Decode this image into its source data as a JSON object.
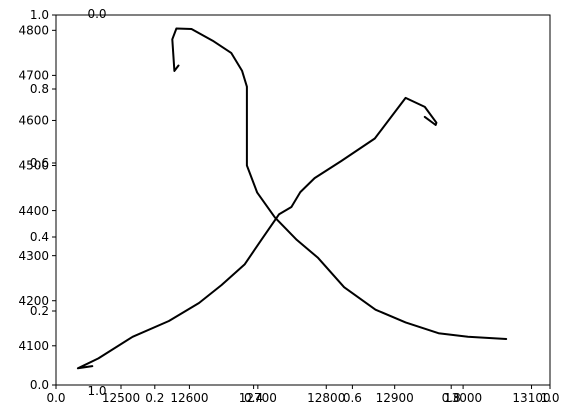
{
  "chart_data": {
    "type": "line",
    "title": "",
    "xlabel": "",
    "ylabel": "",
    "grid": false,
    "line_color": "#000000",
    "background": "#ffffff",
    "primary_axes": {
      "x_ticks": [
        {
          "value": 12500,
          "label": "12500"
        },
        {
          "value": 12600,
          "label": "12600"
        },
        {
          "value": 12700,
          "label": "12700"
        },
        {
          "value": 12800,
          "label": "12800"
        },
        {
          "value": 12900,
          "label": "12900"
        },
        {
          "value": 13000,
          "label": "13000"
        },
        {
          "value": 13100,
          "label": "13100"
        }
      ],
      "y_ticks": [
        {
          "value": 4100,
          "label": "4100"
        },
        {
          "value": 4200,
          "label": "4200"
        },
        {
          "value": 4300,
          "label": "4300"
        },
        {
          "value": 4400,
          "label": "4400"
        },
        {
          "value": 4500,
          "label": "4500"
        },
        {
          "value": 4600,
          "label": "4600"
        },
        {
          "value": 4700,
          "label": "4700"
        },
        {
          "value": 4800,
          "label": "4800"
        }
      ],
      "xlim": [
        12405,
        13127
      ],
      "ylim": [
        4013,
        4834
      ]
    },
    "overlay_axes": {
      "ticks": [
        {
          "value": 0.0,
          "label": "0.0"
        },
        {
          "value": 0.2,
          "label": "0.2"
        },
        {
          "value": 0.4,
          "label": "0.4"
        },
        {
          "value": 0.6,
          "label": "0.6"
        },
        {
          "value": 0.8,
          "label": "0.8"
        },
        {
          "value": 1.0,
          "label": "1.0"
        }
      ],
      "xlim": [
        0,
        1
      ],
      "ylim": [
        0,
        1
      ]
    },
    "inverted_axes": {
      "x_ticks": [
        {
          "value": 0.0,
          "label": "0.0"
        },
        {
          "value": 1.0,
          "label": "1.0"
        }
      ],
      "y_ticks": [
        {
          "value": 0.0,
          "label": "0.0"
        },
        {
          "value": 1.0,
          "label": "1.0"
        }
      ]
    },
    "series": [
      {
        "x": [
          12458,
          12437,
          12467,
          12517,
          12570,
          12614,
          12647,
          12681,
          12705,
          12731,
          12749,
          12762,
          12783,
          12822,
          12871,
          12916,
          12944,
          12961,
          12960,
          12944
        ],
        "y": [
          4055,
          4050,
          4072,
          4120,
          4155,
          4195,
          4235,
          4281,
          4335,
          4392,
          4408,
          4441,
          4472,
          4510,
          4560,
          4650,
          4630,
          4595,
          4590,
          4608
        ]
      },
      {
        "x": [
          12584,
          12578,
          12575,
          12581,
          12603,
          12634,
          12661,
          12677,
          12684,
          12684,
          12699,
          12725,
          12757,
          12788,
          12826,
          12872,
          12916,
          12964,
          13007,
          13063
        ],
        "y": [
          4722,
          4710,
          4780,
          4804,
          4803,
          4777,
          4750,
          4710,
          4675,
          4500,
          4440,
          4385,
          4335,
          4295,
          4230,
          4180,
          4152,
          4128,
          4120,
          4115
        ]
      }
    ]
  }
}
